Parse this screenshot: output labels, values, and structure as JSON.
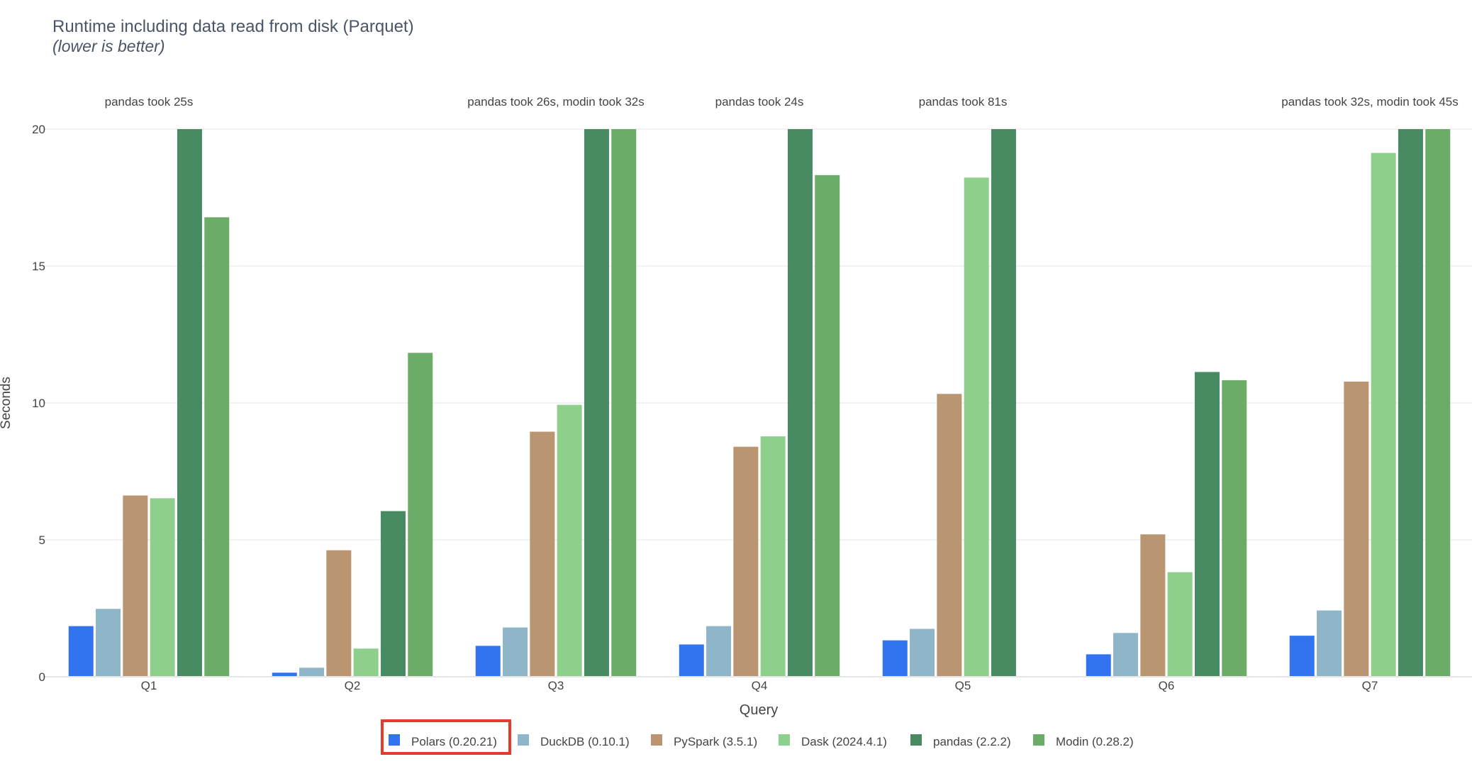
{
  "chart_data": {
    "type": "bar",
    "title": "Runtime including data read from disk (Parquet)",
    "subtitle": "(lower is better)",
    "xlabel": "Query",
    "ylabel": "Seconds",
    "ylim": [
      0,
      20
    ],
    "yticks": [
      0,
      5,
      10,
      15,
      20
    ],
    "grid": true,
    "legend_position": "bottom-center",
    "categories": [
      "Q1",
      "Q2",
      "Q3",
      "Q4",
      "Q5",
      "Q6",
      "Q7"
    ],
    "annotations": [
      "pandas took 25s",
      "",
      "pandas took 26s, modin took 32s",
      "pandas took 24s",
      "pandas took 81s",
      "",
      "pandas took 32s, modin took 45s"
    ],
    "series": [
      {
        "name": "Polars (0.20.21)",
        "color": "#3274f0",
        "values": [
          1.85,
          0.15,
          1.13,
          1.18,
          1.33,
          0.82,
          1.5
        ]
      },
      {
        "name": "DuckDB (0.10.1)",
        "color": "#8fb6c8",
        "values": [
          2.48,
          0.33,
          1.8,
          1.85,
          1.75,
          1.6,
          2.42
        ]
      },
      {
        "name": "PySpark (3.5.1)",
        "color": "#b99571",
        "values": [
          6.62,
          4.62,
          8.95,
          8.4,
          10.33,
          5.2,
          10.78
        ]
      },
      {
        "name": "Dask (2024.4.1)",
        "color": "#8ed08b",
        "values": [
          6.52,
          1.03,
          9.93,
          8.78,
          18.23,
          3.82,
          19.13
        ]
      },
      {
        "name": "pandas (2.2.2)",
        "color": "#488a62",
        "values": [
          20,
          6.05,
          20,
          20,
          20,
          11.13,
          20
        ]
      },
      {
        "name": "Modin (0.28.2)",
        "color": "#6bad67",
        "values": [
          16.78,
          11.83,
          20,
          18.32,
          null,
          10.83,
          20
        ]
      }
    ],
    "highlighted_legend_entry": "Polars (0.20.21)",
    "highlight_color": "#e53b2c"
  }
}
